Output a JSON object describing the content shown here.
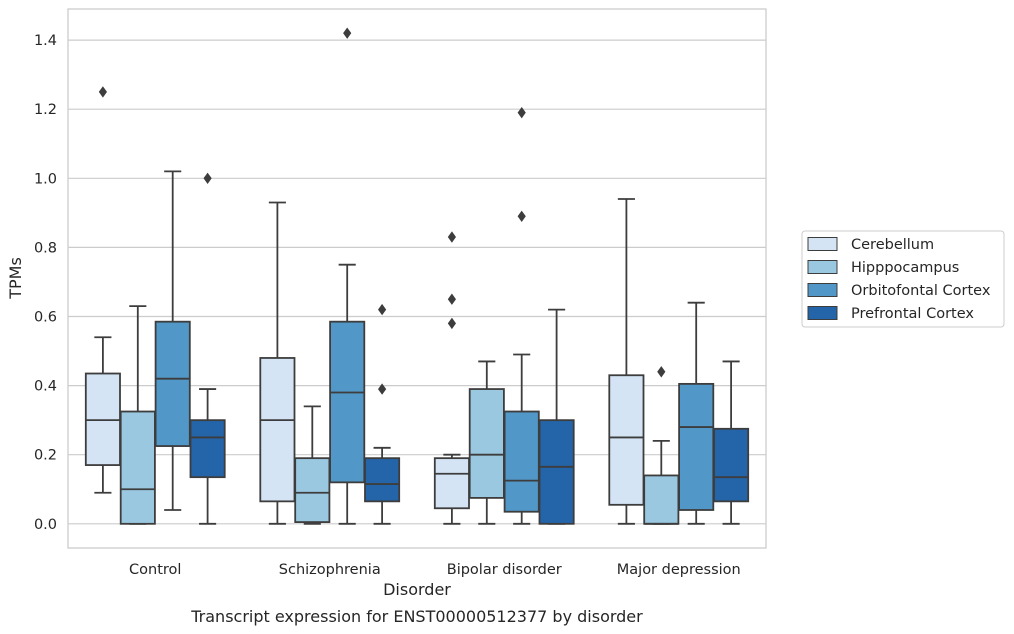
{
  "chart_data": {
    "type": "box",
    "caption": "Transcript expression for ENST00000512377 by disorder",
    "xlabel": "Disorder",
    "ylabel": "TPMs",
    "ylim": [
      -0.07,
      1.49
    ],
    "yticks": [
      0.0,
      0.2,
      0.4,
      0.6,
      0.8,
      1.0,
      1.2,
      1.4
    ],
    "ytick_labels": [
      "0.0",
      "0.2",
      "0.4",
      "0.6",
      "0.8",
      "1.0",
      "1.2",
      "1.4"
    ],
    "grid": "horizontal",
    "legend_position": "right",
    "categories": [
      "Control",
      "Schizophrenia",
      "Bipolar disorder",
      "Major depression"
    ],
    "series": [
      {
        "name": "Cerebellum",
        "color": "#d4e4f4",
        "boxes": [
          {
            "whisker_low": 0.09,
            "q1": 0.17,
            "median": 0.3,
            "q3": 0.435,
            "whisker_high": 0.54,
            "outliers": [
              1.25
            ]
          },
          {
            "whisker_low": 0.0,
            "q1": 0.065,
            "median": 0.3,
            "q3": 0.48,
            "whisker_high": 0.93,
            "outliers": []
          },
          {
            "whisker_low": 0.0,
            "q1": 0.045,
            "median": 0.145,
            "q3": 0.19,
            "whisker_high": 0.2,
            "outliers": [
              0.58,
              0.65,
              0.83
            ]
          },
          {
            "whisker_low": 0.0,
            "q1": 0.055,
            "median": 0.25,
            "q3": 0.43,
            "whisker_high": 0.94,
            "outliers": []
          }
        ]
      },
      {
        "name": "Hipppocampus",
        "color": "#9ac8e0",
        "boxes": [
          {
            "whisker_low": 0.0,
            "q1": 0.0,
            "median": 0.1,
            "q3": 0.325,
            "whisker_high": 0.63,
            "outliers": []
          },
          {
            "whisker_low": 0.0,
            "q1": 0.005,
            "median": 0.09,
            "q3": 0.19,
            "whisker_high": 0.34,
            "outliers": []
          },
          {
            "whisker_low": 0.0,
            "q1": 0.075,
            "median": 0.2,
            "q3": 0.39,
            "whisker_high": 0.47,
            "outliers": []
          },
          {
            "whisker_low": 0.0,
            "q1": 0.0,
            "median": 0.0,
            "q3": 0.14,
            "whisker_high": 0.24,
            "outliers": [
              0.44
            ]
          }
        ]
      },
      {
        "name": "Orbitofontal Cortex",
        "color": "#5197c7",
        "boxes": [
          {
            "whisker_low": 0.04,
            "q1": 0.225,
            "median": 0.42,
            "q3": 0.585,
            "whisker_high": 1.02,
            "outliers": []
          },
          {
            "whisker_low": 0.0,
            "q1": 0.12,
            "median": 0.38,
            "q3": 0.585,
            "whisker_high": 0.75,
            "outliers": [
              1.42
            ]
          },
          {
            "whisker_low": 0.0,
            "q1": 0.035,
            "median": 0.125,
            "q3": 0.325,
            "whisker_high": 0.49,
            "outliers": [
              0.89,
              1.19
            ]
          },
          {
            "whisker_low": 0.0,
            "q1": 0.04,
            "median": 0.28,
            "q3": 0.405,
            "whisker_high": 0.64,
            "outliers": []
          }
        ]
      },
      {
        "name": "Prefrontal Cortex",
        "color": "#2464a9",
        "boxes": [
          {
            "whisker_low": 0.0,
            "q1": 0.135,
            "median": 0.25,
            "q3": 0.3,
            "whisker_high": 0.39,
            "outliers": [
              1.0
            ]
          },
          {
            "whisker_low": 0.0,
            "q1": 0.065,
            "median": 0.115,
            "q3": 0.19,
            "whisker_high": 0.22,
            "outliers": [
              0.39,
              0.62
            ]
          },
          {
            "whisker_low": 0.0,
            "q1": 0.0,
            "median": 0.165,
            "q3": 0.3,
            "whisker_high": 0.62,
            "outliers": []
          },
          {
            "whisker_low": 0.0,
            "q1": 0.065,
            "median": 0.135,
            "q3": 0.275,
            "whisker_high": 0.47,
            "outliers": []
          }
        ]
      }
    ]
  }
}
